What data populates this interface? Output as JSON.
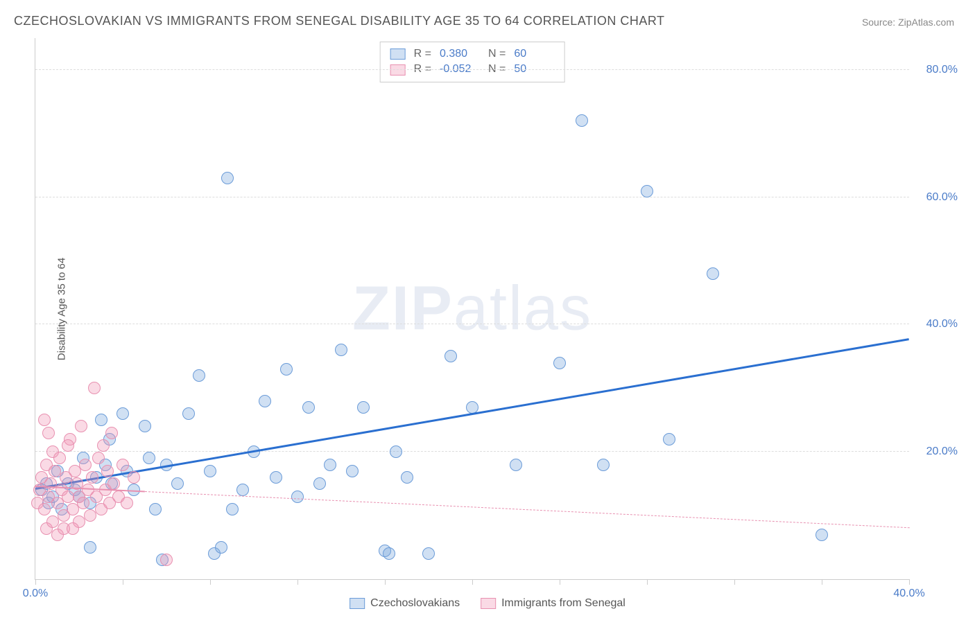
{
  "title": "CZECHOSLOVAKIAN VS IMMIGRANTS FROM SENEGAL DISABILITY AGE 35 TO 64 CORRELATION CHART",
  "source": "Source: ZipAtlas.com",
  "y_axis_label": "Disability Age 35 to 64",
  "watermark": {
    "a": "ZIP",
    "b": "atlas"
  },
  "chart": {
    "type": "scatter",
    "background_color": "#ffffff",
    "grid_color": "#dddddd",
    "axis_color": "#cccccc",
    "xlim": [
      0,
      40
    ],
    "ylim": [
      0,
      85
    ],
    "x_ticks": [
      0,
      4,
      8,
      12,
      16,
      20,
      24,
      28,
      32,
      36,
      40
    ],
    "x_tick_labels": {
      "0": "0.0%",
      "40": "40.0%"
    },
    "y_ticks": [
      20,
      40,
      60,
      80
    ],
    "y_tick_labels": {
      "20": "20.0%",
      "40": "40.0%",
      "60": "60.0%",
      "80": "80.0%"
    },
    "tick_label_color": "#4a7bc8",
    "tick_label_fontsize": 16,
    "axis_label_color": "#555555",
    "axis_label_fontsize": 15,
    "marker_radius": 9,
    "marker_stroke_width": 1.5,
    "series": [
      {
        "name": "Czechoslovakians",
        "fill_color": "rgba(120,165,220,0.35)",
        "stroke_color": "#6a9bd8",
        "R": "0.380",
        "N": "60",
        "trend": {
          "x1": 0,
          "y1": 14,
          "x2": 40,
          "y2": 37.5,
          "color": "#2a6fd0",
          "width": 3,
          "dash": "solid"
        },
        "points": [
          [
            0.3,
            14
          ],
          [
            0.5,
            15
          ],
          [
            0.6,
            12
          ],
          [
            0.8,
            13
          ],
          [
            1.0,
            17
          ],
          [
            1.2,
            11
          ],
          [
            1.5,
            15
          ],
          [
            1.8,
            14
          ],
          [
            2.0,
            13
          ],
          [
            2.2,
            19
          ],
          [
            2.5,
            12
          ],
          [
            2.8,
            16
          ],
          [
            3.0,
            25
          ],
          [
            3.2,
            18
          ],
          [
            3.4,
            22
          ],
          [
            3.5,
            15
          ],
          [
            4.0,
            26
          ],
          [
            4.2,
            17
          ],
          [
            4.5,
            14
          ],
          [
            5.0,
            24
          ],
          [
            5.2,
            19
          ],
          [
            5.5,
            11
          ],
          [
            6.0,
            18
          ],
          [
            6.5,
            15
          ],
          [
            7.0,
            26
          ],
          [
            7.5,
            32
          ],
          [
            8.0,
            17
          ],
          [
            8.2,
            4
          ],
          [
            8.5,
            5
          ],
          [
            8.8,
            63
          ],
          [
            9.0,
            11
          ],
          [
            9.5,
            14
          ],
          [
            10.0,
            20
          ],
          [
            10.5,
            28
          ],
          [
            11.0,
            16
          ],
          [
            11.5,
            33
          ],
          [
            12.0,
            13
          ],
          [
            12.5,
            27
          ],
          [
            13.0,
            15
          ],
          [
            13.5,
            18
          ],
          [
            14.0,
            36
          ],
          [
            14.5,
            17
          ],
          [
            15.0,
            27
          ],
          [
            16.0,
            4.5
          ],
          [
            16.2,
            4
          ],
          [
            16.5,
            20
          ],
          [
            17.0,
            16
          ],
          [
            18.0,
            4
          ],
          [
            19.0,
            35
          ],
          [
            20.0,
            27
          ],
          [
            22.0,
            18
          ],
          [
            24.0,
            34
          ],
          [
            25.0,
            72
          ],
          [
            26.0,
            18
          ],
          [
            28.0,
            61
          ],
          [
            29.0,
            22
          ],
          [
            31.0,
            48
          ],
          [
            36.0,
            7
          ],
          [
            2.5,
            5
          ],
          [
            5.8,
            3
          ]
        ]
      },
      {
        "name": "Immigrants from Senegal",
        "fill_color": "rgba(240,150,180,0.35)",
        "stroke_color": "#e890b0",
        "R": "-0.052",
        "N": "50",
        "trend": {
          "x1": 0,
          "y1": 14.5,
          "x2": 40,
          "y2": 8,
          "color": "#e890b0",
          "width": 1.5,
          "dash": "dashed"
        },
        "trend_solid_to_x": 5,
        "points": [
          [
            0.1,
            12
          ],
          [
            0.2,
            14
          ],
          [
            0.3,
            16
          ],
          [
            0.4,
            11
          ],
          [
            0.5,
            18
          ],
          [
            0.6,
            13
          ],
          [
            0.7,
            15
          ],
          [
            0.8,
            20
          ],
          [
            0.9,
            17
          ],
          [
            1.0,
            12
          ],
          [
            1.1,
            19
          ],
          [
            1.2,
            14
          ],
          [
            1.3,
            10
          ],
          [
            1.4,
            16
          ],
          [
            1.5,
            13
          ],
          [
            1.6,
            22
          ],
          [
            1.7,
            11
          ],
          [
            1.8,
            17
          ],
          [
            1.9,
            15
          ],
          [
            2.0,
            13
          ],
          [
            2.1,
            24
          ],
          [
            2.2,
            12
          ],
          [
            2.3,
            18
          ],
          [
            2.4,
            14
          ],
          [
            2.5,
            10
          ],
          [
            2.6,
            16
          ],
          [
            2.7,
            30
          ],
          [
            2.8,
            13
          ],
          [
            2.9,
            19
          ],
          [
            3.0,
            11
          ],
          [
            3.1,
            21
          ],
          [
            3.2,
            14
          ],
          [
            3.3,
            17
          ],
          [
            3.4,
            12
          ],
          [
            3.5,
            23
          ],
          [
            3.6,
            15
          ],
          [
            3.8,
            13
          ],
          [
            4.0,
            18
          ],
          [
            4.2,
            12
          ],
          [
            4.5,
            16
          ],
          [
            0.5,
            8
          ],
          [
            0.8,
            9
          ],
          [
            1.0,
            7
          ],
          [
            1.3,
            8
          ],
          [
            1.5,
            21
          ],
          [
            0.4,
            25
          ],
          [
            0.6,
            23
          ],
          [
            6.0,
            3
          ],
          [
            2.0,
            9
          ],
          [
            1.7,
            8
          ]
        ]
      }
    ]
  },
  "legend_label_color": "#555555"
}
